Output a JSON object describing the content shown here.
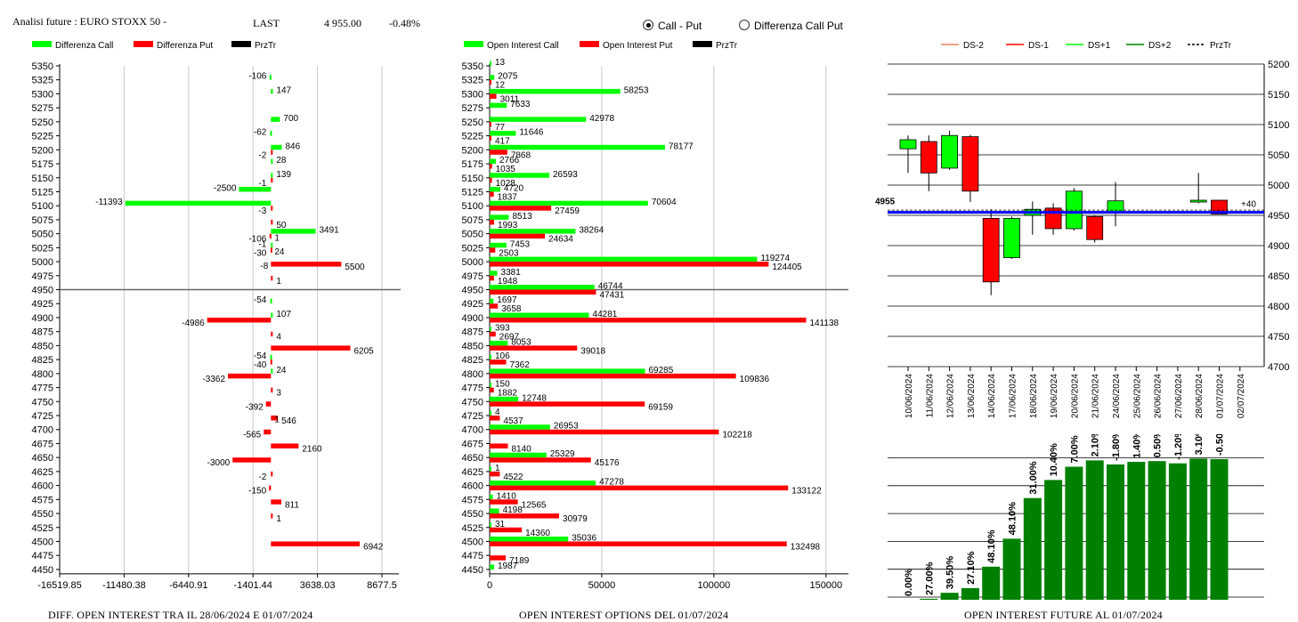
{
  "header": {
    "title": "Analisi future : EURO STOXX 50 -",
    "last_label": "LAST",
    "last_value": "4 955.00",
    "last_change": "-0.48%"
  },
  "view_toggle": {
    "option1": "Call - Put",
    "option2": "Differenza Call Put",
    "selected": "Call - Put"
  },
  "colors": {
    "green": "#00ff00",
    "red": "#ff0000",
    "black": "#000000",
    "dark_green": "#008000",
    "blue": "#0000ff"
  },
  "footers": {
    "left": "DIFF. OPEN INTEREST TRA IL 28/06/2024 E 01/07/2024",
    "middle": "OPEN INTEREST OPTIONS DEL 01/07/2024",
    "right": "OPEN INTEREST FUTURE AL 01/07/2024"
  },
  "chart_data": [
    {
      "type": "bar",
      "orientation": "horizontal",
      "legend": [
        "Differenza Call",
        "Differenza Put",
        "PrzTr"
      ],
      "strikes": [
        "5350",
        "5325",
        "5300",
        "5275",
        "5250",
        "5225",
        "5200",
        "5175",
        "5150",
        "5125",
        "5100",
        "5075",
        "5050",
        "5025",
        "5000",
        "4975",
        "4950",
        "4925",
        "4900",
        "4875",
        "4850",
        "4825",
        "4800",
        "4775",
        "4750",
        "4725",
        "4700",
        "4675",
        "4650",
        "4625",
        "4600",
        "4575",
        "4550",
        "4525",
        "4500",
        "4475",
        "4450"
      ],
      "call_labels": [
        null,
        "-106",
        "147",
        null,
        "700",
        "-62",
        "846",
        "28",
        "139",
        "-2500",
        "-11393",
        null,
        "3491",
        "-1",
        null,
        null,
        null,
        "-54",
        "107",
        null,
        null,
        "-54",
        "24",
        null,
        null,
        null,
        null,
        null,
        null,
        null,
        null,
        null,
        null,
        null,
        null,
        null,
        null
      ],
      "put_labels": [
        null,
        null,
        null,
        null,
        null,
        null,
        "-2",
        null,
        "-1",
        null,
        "-3",
        "50",
        "-106",
        "-30",
        "5500",
        "1",
        null,
        null,
        "-4986",
        "4",
        "6205",
        "-40",
        "-3362",
        "3",
        "-392",
        "546",
        "-565",
        "2160",
        "-3000",
        "-2",
        "-150",
        "811",
        "1",
        null,
        "6942",
        null,
        null
      ],
      "extra_labels": {
        "5025": "1",
        "4975": "-8",
        "5000": "24",
        "4700": "1"
      },
      "prztr": "4950",
      "x_ticks": [
        "-16519.85",
        "-11480.38",
        "-6440.91",
        "-1401.44",
        "3638.03",
        "8677.5"
      ],
      "xlim": [
        -16519.85,
        10000
      ]
    },
    {
      "type": "bar",
      "orientation": "horizontal",
      "legend": [
        "Open Interest Call",
        "Open Interest Put",
        "PrzTr"
      ],
      "strikes": [
        "5350",
        "5325",
        "5300",
        "5275",
        "5250",
        "5225",
        "5200",
        "5175",
        "5150",
        "5125",
        "5100",
        "5075",
        "5050",
        "5025",
        "5000",
        "4975",
        "4950",
        "4925",
        "4900",
        "4875",
        "4850",
        "4825",
        "4800",
        "4775",
        "4750",
        "4725",
        "4700",
        "4675",
        "4650",
        "4625",
        "4600",
        "4575",
        "4550",
        "4525",
        "4500",
        "4475",
        "4450"
      ],
      "call": [
        13,
        2075,
        58253,
        7633,
        42978,
        11646,
        78177,
        2766,
        26593,
        4720,
        70604,
        8513,
        38264,
        7453,
        119274,
        3381,
        46744,
        1697,
        44281,
        393,
        8053,
        106,
        69285,
        150,
        12748,
        4,
        26953,
        null,
        25329,
        1,
        47278,
        1410,
        4198,
        31,
        35036,
        null,
        1987
      ],
      "put": [
        null,
        12,
        3011,
        null,
        77,
        417,
        7868,
        1035,
        1028,
        1837,
        27459,
        1993,
        24634,
        2503,
        124405,
        1948,
        47431,
        3658,
        141138,
        2697,
        39018,
        7362,
        109836,
        1882,
        69159,
        4537,
        102218,
        8140,
        45176,
        4522,
        133122,
        12565,
        30979,
        14360,
        132498,
        7189,
        null
      ],
      "prztr": "4950",
      "x_ticks": [
        "0",
        "50000",
        "100000",
        "150000"
      ],
      "xlim": [
        0,
        160000
      ]
    },
    {
      "type": "candlestick",
      "legend": [
        "DS-2",
        "DS-1",
        "DS+1",
        "DS+2",
        "PrzTr"
      ],
      "dates": [
        "10/06/2024",
        "11/06/2024",
        "12/06/2024",
        "13/06/2024",
        "14/06/2024",
        "17/06/2024",
        "18/06/2024",
        "19/06/2024",
        "20/06/2024",
        "21/06/2024",
        "24/06/2024",
        "25/06/2024",
        "26/06/2024",
        "27/06/2024",
        "28/06/2024",
        "01/07/2024",
        "02/07/2024"
      ],
      "candles": [
        {
          "o": 5060,
          "c": 5075,
          "h": 5082,
          "l": 5020
        },
        {
          "o": 5072,
          "c": 5020,
          "h": 5082,
          "l": 4990
        },
        {
          "o": 5028,
          "c": 5082,
          "h": 5090,
          "l": 5025
        },
        {
          "o": 5080,
          "c": 4990,
          "h": 5083,
          "l": 4972
        },
        {
          "o": 4945,
          "c": 4840,
          "h": 4960,
          "l": 4818
        },
        {
          "o": 4880,
          "c": 4945,
          "h": 4948,
          "l": 4878
        },
        {
          "o": 4950,
          "c": 4960,
          "h": 4973,
          "l": 4918
        },
        {
          "o": 4962,
          "c": 4928,
          "h": 4970,
          "l": 4918
        },
        {
          "o": 4928,
          "c": 4990,
          "h": 4995,
          "l": 4925
        },
        {
          "o": 4948,
          "c": 4910,
          "h": 4950,
          "l": 4905
        },
        {
          "o": 4955,
          "c": 4974,
          "h": 5005,
          "l": 4932
        },
        null,
        null,
        null,
        {
          "o": 4972,
          "c": 4975,
          "h": 5020,
          "l": 4970
        },
        {
          "o": 4975,
          "c": 4952,
          "h": 4976,
          "l": 4952
        },
        null
      ],
      "last_label": "4955",
      "delta_label": "+40",
      "prztr": 4955,
      "y_ticks": [
        5200,
        5150,
        5100,
        5050,
        5000,
        4950,
        4900,
        4850,
        4800,
        4750,
        4700
      ],
      "ylim": [
        4700,
        5200
      ]
    },
    {
      "type": "bar",
      "values": [
        0.0,
        27.0,
        39.5,
        27.1,
        48.1,
        48.1,
        31.0,
        10.4,
        7.0,
        2.1,
        -1.8,
        1.4,
        0.5,
        -1.2,
        3.1,
        -0.5
      ],
      "labels": [
        "0.00%",
        "27.00%",
        "39.50%",
        "27.10%",
        "48.10%",
        "48.10%",
        "31.00%",
        "10.40%",
        "7.00%",
        "2.10%",
        "-1.80%",
        "1.40%",
        "0.50%",
        "-1.20%",
        "3.10%",
        "-0.50%"
      ],
      "heights": [
        0,
        1.1,
        7.8,
        13.1,
        37.2,
        68.6,
        114.3,
        134.6,
        149.5,
        156.6,
        152.1,
        155.0,
        155.8,
        153.3,
        158.6,
        158.0
      ]
    }
  ]
}
